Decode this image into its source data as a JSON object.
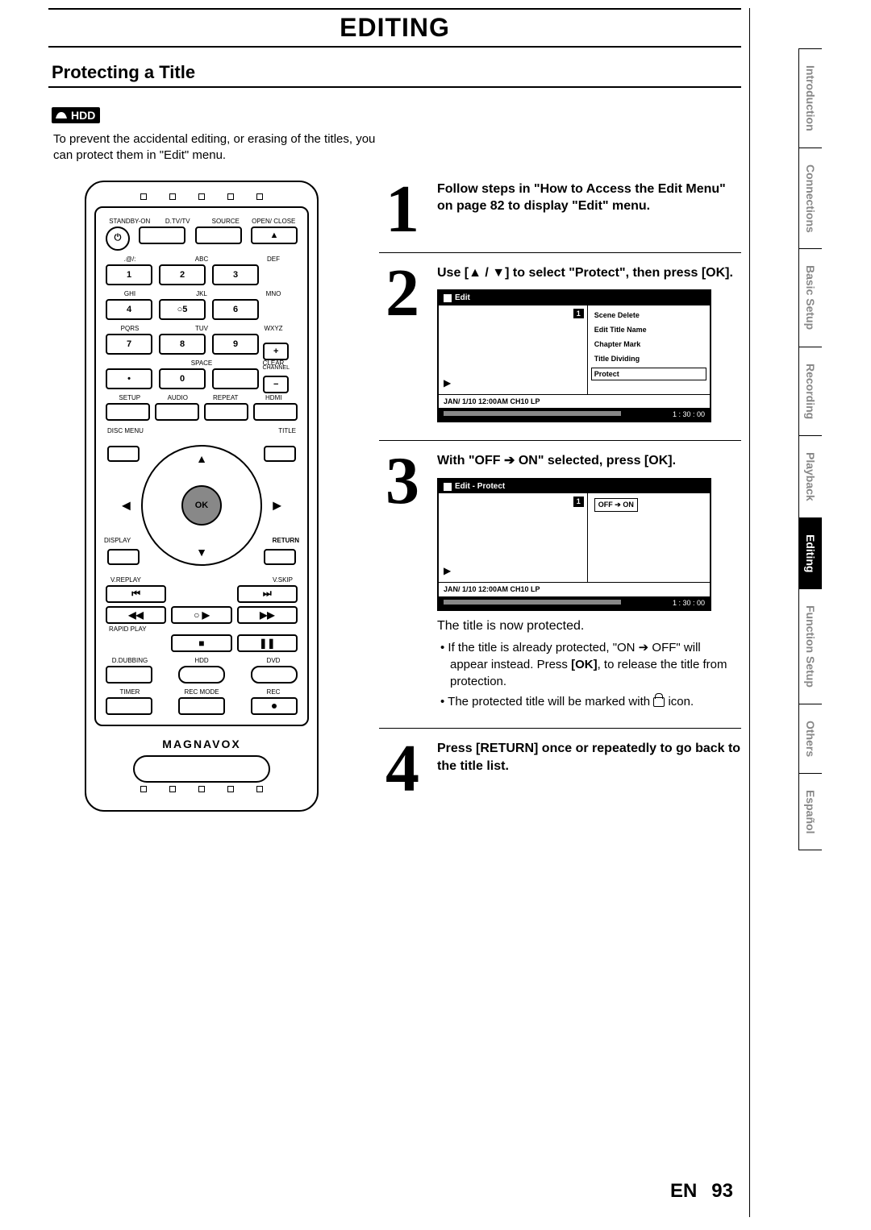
{
  "header": {
    "title": "EDITING"
  },
  "section": {
    "title": "Protecting a Title",
    "badge": "HDD",
    "intro": "To prevent the accidental editing, or erasing of the titles, you can protect them in \"Edit\" menu."
  },
  "remote": {
    "row1_labels": [
      "STANDBY-ON",
      "D.TV/TV",
      "SOURCE",
      "OPEN/\nCLOSE"
    ],
    "row2_labels": [
      ".@/:",
      "ABC",
      "DEF"
    ],
    "row3_labels": [
      "GHI",
      "JKL",
      "MNO"
    ],
    "row4_labels": [
      "PQRS",
      "TUV",
      "WXYZ"
    ],
    "row5_labels": [
      "",
      "SPACE",
      "CLEAR"
    ],
    "row6_labels": [
      "SETUP",
      "AUDIO",
      "REPEAT",
      "HDMI"
    ],
    "disc_menu": "DISC MENU",
    "title": "TITLE",
    "display": "DISPLAY",
    "return": "RETURN",
    "ok": "OK",
    "vreplay": "V.REPLAY",
    "vskip": "V.SKIP",
    "rapid": "RAPID PLAY",
    "ddub": "D.DUBBING",
    "hdd": "HDD",
    "dvd": "DVD",
    "timer": "TIMER",
    "recmode": "REC MODE",
    "rec": "REC",
    "brand": "MAGNAVOX",
    "side_channel": "CHANNEL",
    "nums": [
      "1",
      "2",
      "3",
      "4",
      "5",
      "6",
      "7",
      "8",
      "9",
      "0"
    ]
  },
  "steps": {
    "s1": "Follow steps in \"How to Access the Edit Menu\" on page 82 to display \"Edit\" menu.",
    "s2": "Use [▲ / ▼] to select \"Protect\", then press [OK].",
    "s3": "With \"OFF ➔ ON\" selected, press [OK].",
    "s3_after": "The title is now protected.",
    "s3_b1a": "If the title is already protected, \"ON ➔ OFF\" will appear instead. Press ",
    "s3_b1b": "[OK]",
    "s3_b1c": ", to release the title from protection.",
    "s3_b2a": "The protected title will be marked with ",
    "s3_b2b": " icon.",
    "s4": "Press [RETURN] once or repeatedly to go back to the title list."
  },
  "osd1": {
    "title": "Edit",
    "items": [
      "Scene Delete",
      "Edit Title Name",
      "Chapter Mark",
      "Title Dividing",
      "Protect"
    ],
    "boxed_index": 4,
    "info": "JAN/ 1/10 12:00AM CH10   LP",
    "time": "1 : 30 : 00",
    "badge": "1"
  },
  "osd2": {
    "title": "Edit - Protect",
    "option": "OFF  ➔  ON",
    "info": "JAN/ 1/10 12:00AM CH10   LP",
    "time": "1 : 30 : 00",
    "badge": "1"
  },
  "tabs": [
    "Introduction",
    "Connections",
    "Basic Setup",
    "Recording",
    "Playback",
    "Editing",
    "Function Setup",
    "Others",
    "Español"
  ],
  "active_tab_index": 5,
  "footer": {
    "lang": "EN",
    "page": "93"
  }
}
